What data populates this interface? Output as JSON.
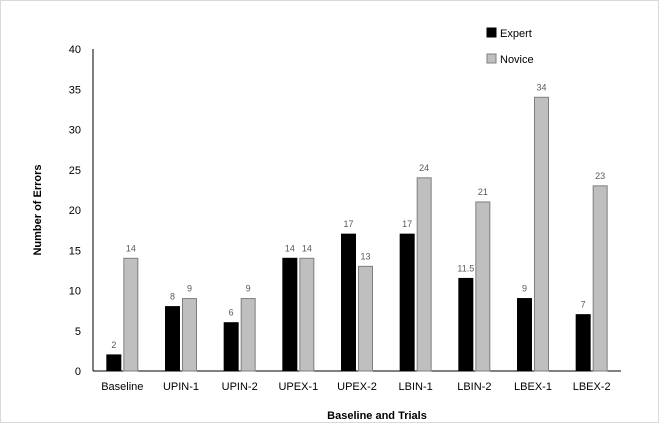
{
  "chart_data": {
    "type": "bar",
    "title": "",
    "xlabel": "Baseline and Trials",
    "ylabel": "Number of Errors",
    "ylim": [
      0,
      40
    ],
    "yticks": [
      0,
      5,
      10,
      15,
      20,
      25,
      30,
      35,
      40
    ],
    "grid": false,
    "legend_position": "top-right",
    "categories": [
      "Baseline",
      "UPIN-1",
      "UPIN-2",
      "UPEX-1",
      "UPEX-2",
      "LBIN-1",
      "LBIN-2",
      "LBEX-1",
      "LBEX-2"
    ],
    "series": [
      {
        "name": "Expert",
        "color": "#000000",
        "values": [
          2,
          8,
          6,
          14,
          17,
          17,
          11.5,
          9,
          7
        ]
      },
      {
        "name": "Novice",
        "color": "#bfbfbf",
        "values": [
          14,
          9,
          9,
          14,
          13,
          24,
          21,
          34,
          23
        ]
      }
    ]
  }
}
